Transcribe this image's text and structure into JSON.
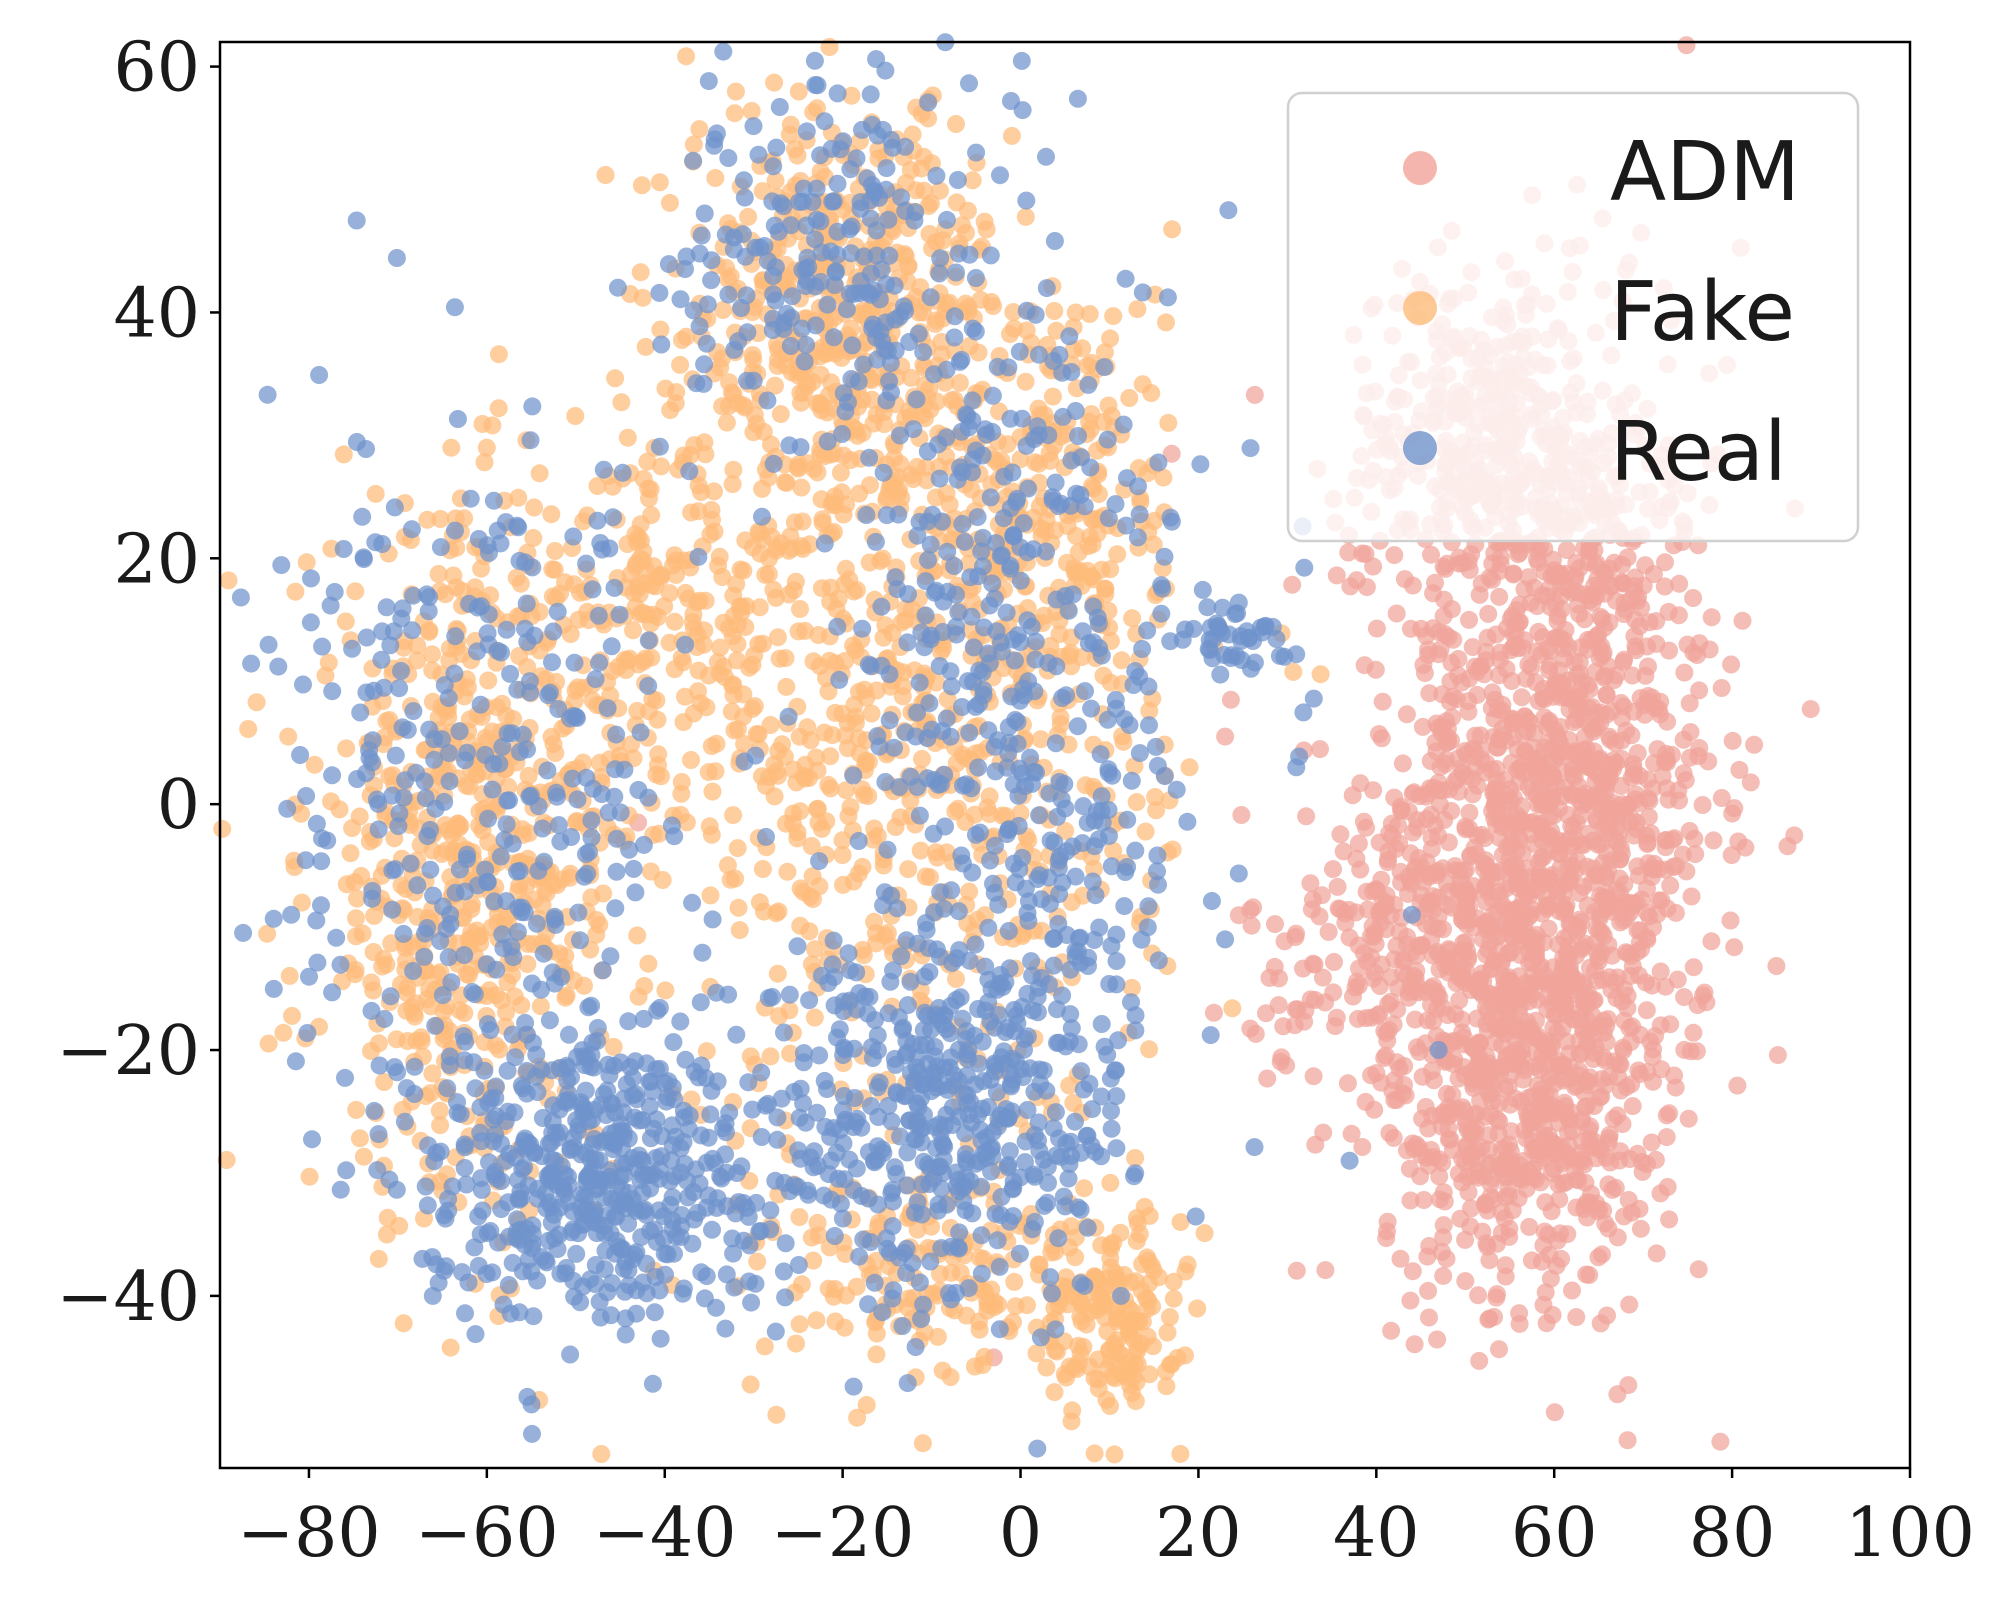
{
  "chart_data": {
    "type": "scatter",
    "title": "",
    "xlabel": "",
    "ylabel": "",
    "xlim": [
      -90,
      100
    ],
    "ylim": [
      -54,
      62
    ],
    "xticks": [
      -80,
      -60,
      -40,
      -20,
      0,
      20,
      40,
      60,
      80,
      100
    ],
    "yticks": [
      -40,
      -20,
      0,
      20,
      40,
      60
    ],
    "xtick_labels": [
      "−80",
      "−60",
      "−40",
      "−20",
      "0",
      "20",
      "40",
      "60",
      "80",
      "100"
    ],
    "ytick_labels": [
      "−40",
      "−20",
      "0",
      "20",
      "40",
      "60"
    ],
    "grid": false,
    "legend_position": "top-right",
    "series": [
      {
        "name": "ADM",
        "color": "#f0a39a",
        "clusters": [
          {
            "cx": 60,
            "cy": 0,
            "sx": 9,
            "sy": 18,
            "n": 1500
          },
          {
            "cx": 55,
            "cy": -25,
            "sx": 7,
            "sy": 7,
            "n": 350
          },
          {
            "cx": 45,
            "cy": -12,
            "sx": 10,
            "sy": 6,
            "n": 250
          },
          {
            "cx": 52,
            "cy": 30,
            "sx": 8,
            "sy": 7,
            "n": 300
          }
        ],
        "points": [
          [
            17,
            28.5
          ],
          [
            23,
            5.5
          ],
          [
            -43,
            -1.5
          ],
          [
            -3,
            -45
          ]
        ]
      },
      {
        "name": "Fake",
        "color": "#fdbb7a",
        "clusters": [
          {
            "cx": -62,
            "cy": -5,
            "sx": 9,
            "sy": 14,
            "n": 650
          },
          {
            "cx": -20,
            "cy": 40,
            "sx": 9,
            "sy": 9,
            "n": 500
          },
          {
            "cx": -12,
            "cy": 5,
            "sx": 14,
            "sy": 16,
            "n": 700
          },
          {
            "cx": -40,
            "cy": 15,
            "sx": 8,
            "sy": 8,
            "n": 200
          },
          {
            "cx": 10,
            "cy": -42,
            "sx": 4,
            "sy": 4,
            "n": 160
          },
          {
            "cx": -10,
            "cy": -38,
            "sx": 10,
            "sy": 5,
            "n": 180
          },
          {
            "cx": 5,
            "cy": 25,
            "sx": 6,
            "sy": 10,
            "n": 200
          }
        ],
        "points": [
          [
            19,
            3
          ],
          [
            -64,
            29
          ],
          [
            -60,
            29
          ],
          [
            18,
            -34
          ]
        ]
      },
      {
        "name": "Real",
        "color": "#6f93cc",
        "clusters": [
          {
            "cx": -48,
            "cy": -30,
            "sx": 10,
            "sy": 6,
            "n": 500
          },
          {
            "cx": -8,
            "cy": -25,
            "sx": 10,
            "sy": 8,
            "n": 450
          },
          {
            "cx": 0,
            "cy": 10,
            "sx": 10,
            "sy": 18,
            "n": 450
          },
          {
            "cx": -60,
            "cy": 0,
            "sx": 12,
            "sy": 15,
            "n": 350
          },
          {
            "cx": -22,
            "cy": 45,
            "sx": 8,
            "sy": 7,
            "n": 200
          },
          {
            "cx": 24,
            "cy": 14,
            "sx": 3,
            "sy": 2,
            "n": 45
          }
        ],
        "points": [
          [
            -82,
            -9
          ],
          [
            -81,
            4
          ],
          [
            47,
            -20
          ],
          [
            44,
            -9
          ],
          [
            37,
            -29
          ],
          [
            31,
            3
          ],
          [
            23,
            -11
          ],
          [
            -5,
            53
          ]
        ]
      }
    ]
  },
  "legend": {
    "items": [
      {
        "label": "ADM",
        "color": "#f0a39a"
      },
      {
        "label": "Fake",
        "color": "#fdbb7a"
      },
      {
        "label": "Real",
        "color": "#6f93cc"
      }
    ]
  }
}
